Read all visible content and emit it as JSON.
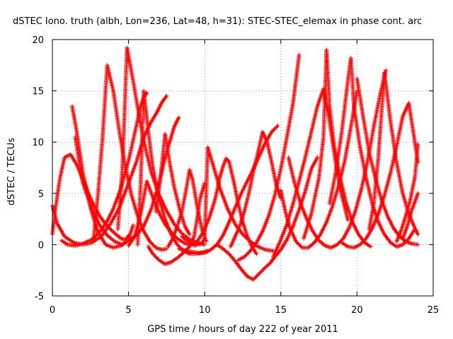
{
  "chart_data": {
    "type": "scatter",
    "title": "dSTEC Iono. truth (albh, Lon=236, Lat=48, h=31): STEC-STEC_elemax in phase cont. arc",
    "xlabel": "GPS time / hours of day 222 of year 2011",
    "ylabel": "dSTEC  / TECUs",
    "xlim": [
      0,
      25
    ],
    "ylim": [
      -5,
      20
    ],
    "xticks": [
      0,
      5,
      10,
      15,
      20,
      25
    ],
    "yticks": [
      -5,
      0,
      5,
      10,
      15,
      20
    ],
    "xtick_labels": [
      "0",
      "5",
      "10",
      "15",
      "20",
      "25"
    ],
    "ytick_labels": [
      "-5",
      "0",
      "5",
      "10",
      "15",
      "20"
    ],
    "grid": true,
    "marker": "plus",
    "color": "#ff0000",
    "series": [
      {
        "x": [
          0.0,
          0.3,
          0.8,
          1.4,
          2.0,
          2.6,
          3.2,
          3.8,
          4.4,
          4.9,
          5.5,
          6.0,
          6.5,
          6.9,
          7.2,
          7.5
        ],
        "y": [
          3.8,
          2.1,
          0.8,
          0.2,
          0.0,
          0.2,
          0.8,
          2.0,
          3.6,
          5.6,
          8.0,
          10.5,
          12.0,
          13.0,
          13.9,
          14.5
        ]
      },
      {
        "x": [
          1.5,
          2.0,
          2.6,
          3.1,
          3.6,
          4.1,
          4.6,
          5.0,
          5.3
        ],
        "y": [
          10.5,
          6.0,
          3.5,
          1.9,
          0.9,
          0.3,
          0.0,
          0.5,
          1.9
        ]
      },
      {
        "x": [
          0.0,
          0.2,
          0.5,
          0.8,
          1.2,
          1.6,
          2.1,
          2.6,
          3.1,
          3.6,
          4.1,
          4.5,
          4.7,
          4.9,
          5.0
        ],
        "y": [
          1.0,
          3.5,
          6.5,
          8.5,
          8.8,
          7.8,
          6.0,
          4.2,
          2.8,
          1.8,
          1.1,
          0.6,
          0.5,
          0.6,
          0.9
        ]
      },
      {
        "x": [
          0.6,
          1.0,
          1.5,
          2.0,
          2.6,
          3.2,
          3.6,
          4.0,
          4.5,
          5.0,
          5.5,
          5.8,
          6.0,
          6.2
        ],
        "y": [
          0.4,
          0.0,
          -0.1,
          0.1,
          0.5,
          1.4,
          2.3,
          3.5,
          5.5,
          8.2,
          11.5,
          13.5,
          14.4,
          14.8
        ]
      },
      {
        "x": [
          1.3,
          1.6,
          2.0,
          2.5,
          3.0,
          3.5,
          4.0,
          4.5,
          5.0,
          5.5,
          6.0,
          6.5,
          7.0,
          7.5,
          8.0,
          8.3
        ],
        "y": [
          13.5,
          11.0,
          7.0,
          3.6,
          1.2,
          0.0,
          -0.3,
          -0.1,
          0.4,
          0.9,
          1.8,
          3.5,
          6.0,
          9.0,
          11.5,
          12.4
        ]
      },
      {
        "x": [
          2.7,
          3.0,
          3.3,
          3.6,
          4.0,
          4.4,
          4.8,
          5.2,
          5.6,
          6.0,
          6.4,
          6.8,
          7.2,
          7.5
        ],
        "y": [
          0.5,
          5.0,
          10.5,
          17.5,
          15.0,
          11.0,
          7.5,
          4.8,
          2.8,
          1.3,
          0.3,
          -0.3,
          -0.5,
          -0.4
        ]
      },
      {
        "x": [
          4.3,
          4.6,
          4.9,
          5.3,
          5.7,
          6.1,
          6.5,
          7.0,
          7.5,
          8.0,
          8.5,
          9.0,
          9.5,
          10.0
        ],
        "y": [
          1.5,
          7.5,
          19.2,
          16.0,
          12.5,
          9.5,
          7.0,
          4.9,
          3.3,
          2.0,
          1.1,
          0.5,
          0.2,
          0.0
        ]
      },
      {
        "x": [
          5.0,
          5.4,
          5.8,
          6.2,
          6.6,
          7.0,
          7.4,
          7.8,
          8.2,
          8.6,
          9.0,
          9.4
        ],
        "y": [
          -0.1,
          0.8,
          3.0,
          6.2,
          4.6,
          3.1,
          2.0,
          1.2,
          0.6,
          0.2,
          0.0,
          -0.1
        ]
      },
      {
        "x": [
          5.6,
          5.8,
          6.0,
          6.3,
          6.6,
          7.0,
          7.4,
          7.8,
          8.2,
          8.6,
          9.0,
          9.4,
          9.8,
          10.2
        ],
        "y": [
          0.0,
          6.0,
          15.0,
          11.0,
          7.5,
          4.5,
          2.5,
          1.0,
          0.0,
          -0.6,
          -0.9,
          -0.9,
          -0.8,
          -0.6
        ]
      },
      {
        "x": [
          6.3,
          6.6,
          7.0,
          7.4,
          7.8,
          8.2,
          8.6,
          9.0,
          9.3,
          9.5,
          9.7,
          9.9,
          10.0
        ],
        "y": [
          -0.2,
          -0.9,
          -1.5,
          -1.9,
          -1.7,
          -1.3,
          -0.8,
          -0.2,
          0.8,
          2.5,
          4.5,
          5.5,
          6.0
        ]
      },
      {
        "x": [
          6.8,
          7.1,
          7.4,
          7.7,
          8.0,
          8.4,
          8.7,
          9.0
        ],
        "y": [
          3.2,
          6.5,
          10.8,
          8.0,
          5.6,
          3.2,
          1.8,
          1.0
        ]
      },
      {
        "x": [
          7.6,
          7.9,
          8.2,
          8.5,
          8.8,
          9.0,
          9.2,
          9.5,
          9.8,
          10.1
        ],
        "y": [
          -0.2,
          0.6,
          1.8,
          3.2,
          5.5,
          7.3,
          6.4,
          3.8,
          1.6,
          0.3
        ]
      },
      {
        "x": [
          8.5,
          9.0,
          9.5,
          9.8,
          10.0,
          10.2,
          10.5,
          11.0,
          11.5,
          12.0,
          12.5,
          13.0,
          13.5,
          14.0,
          14.5
        ],
        "y": [
          0.8,
          0.2,
          0.0,
          0.1,
          0.6,
          9.5,
          8.0,
          5.5,
          3.5,
          2.0,
          1.0,
          0.3,
          -0.2,
          -0.5,
          -0.6
        ]
      },
      {
        "x": [
          8.3,
          8.8,
          9.2,
          9.6,
          10.0,
          10.4,
          10.8,
          11.2,
          11.6,
          12.0,
          12.4,
          12.8,
          13.2,
          13.6,
          14.0,
          14.4,
          14.8
        ],
        "y": [
          -0.4,
          -0.6,
          -0.7,
          -0.8,
          -0.8,
          -0.5,
          0.0,
          0.9,
          2.2,
          3.6,
          5.0,
          6.2,
          7.4,
          8.7,
          10.0,
          11.0,
          11.6
        ]
      },
      {
        "x": [
          9.5,
          9.9,
          10.3,
          10.7,
          11.0,
          11.2,
          11.4,
          11.6,
          11.9,
          12.2,
          12.5,
          12.8,
          13.1,
          13.4
        ],
        "y": [
          0.3,
          1.2,
          2.6,
          4.5,
          6.6,
          7.6,
          8.4,
          8.1,
          6.2,
          4.0,
          2.2,
          0.8,
          -0.2,
          -0.9
        ]
      },
      {
        "x": [
          10.8,
          11.2,
          11.6,
          12.0,
          12.4,
          12.8,
          13.2,
          13.6,
          14.0,
          14.3,
          14.6,
          15.0,
          15.4,
          15.8,
          16.2,
          16.6,
          17.0,
          17.4
        ],
        "y": [
          0.0,
          -0.4,
          -0.9,
          -1.6,
          -2.4,
          -3.1,
          -3.4,
          -2.8,
          -2.2,
          -1.8,
          -1.2,
          -0.5,
          0.5,
          1.8,
          3.4,
          5.2,
          7.4,
          8.5
        ]
      },
      {
        "x": [
          11.7,
          12.0,
          12.3,
          12.6,
          12.9,
          13.2,
          13.5,
          13.8,
          14.1,
          14.4,
          14.7,
          15.0
        ],
        "y": [
          -0.2,
          0.8,
          1.8,
          3.2,
          5.0,
          7.2,
          9.0,
          11.0,
          10.0,
          8.0,
          5.8,
          4.5
        ]
      },
      {
        "x": [
          12.2,
          12.6,
          13.0,
          13.4,
          13.8,
          14.2,
          14.6,
          15.0,
          15.4,
          15.8,
          16.2
        ],
        "y": [
          -1.5,
          -1.2,
          -0.6,
          0.2,
          1.3,
          2.8,
          4.8,
          7.4,
          10.5,
          13.8,
          18.5
        ]
      },
      {
        "x": [
          14.5,
          15.0,
          15.4,
          15.8,
          16.2,
          16.6,
          17.0,
          17.4,
          17.8,
          18.2,
          18.6,
          19.0,
          19.4
        ],
        "y": [
          -1.2,
          0.5,
          2.0,
          4.0,
          6.2,
          8.5,
          11.0,
          13.5,
          15.2,
          12.0,
          8.0,
          4.8,
          2.4
        ]
      },
      {
        "x": [
          15.0,
          15.3,
          15.6,
          16.0,
          16.4,
          16.8,
          17.2,
          17.6,
          18.0,
          18.4,
          18.8,
          19.2,
          19.6,
          20.0
        ],
        "y": [
          5.3,
          3.2,
          1.6,
          0.3,
          -0.3,
          -0.3,
          0.2,
          1.0,
          2.2,
          3.8,
          5.8,
          8.2,
          11.5,
          15.0
        ]
      },
      {
        "x": [
          15.5,
          15.9,
          16.3,
          16.7,
          17.1,
          17.5,
          17.9,
          18.3,
          18.7,
          19.1,
          19.5,
          19.9,
          20.3,
          20.7,
          21.1,
          21.5,
          21.9
        ],
        "y": [
          8.5,
          6.0,
          4.0,
          2.5,
          1.3,
          0.4,
          -0.1,
          -0.3,
          0.0,
          0.6,
          1.7,
          3.3,
          5.5,
          8.2,
          11.5,
          14.5,
          17.0
        ]
      },
      {
        "x": [
          16.5,
          17.0,
          17.5,
          17.8,
          18.0,
          18.2,
          18.5,
          18.9,
          19.3,
          19.7,
          20.1,
          20.5,
          20.9
        ],
        "y": [
          0.6,
          3.0,
          6.5,
          10.5,
          19.0,
          13.5,
          9.6,
          6.5,
          4.0,
          2.2,
          1.0,
          0.2,
          -0.2
        ]
      },
      {
        "x": [
          18.2,
          18.6,
          19.0,
          19.4,
          19.6,
          19.8,
          20.2,
          20.6,
          21.0,
          21.4,
          21.8,
          22.2,
          22.6,
          23.0,
          23.4,
          23.8
        ],
        "y": [
          4.0,
          7.0,
          11.0,
          16.0,
          18.2,
          13.5,
          9.5,
          6.5,
          4.0,
          2.2,
          1.0,
          0.2,
          -0.2,
          0.0,
          0.6,
          1.5
        ]
      },
      {
        "x": [
          19.0,
          19.4,
          19.8,
          20.2,
          20.6,
          21.0,
          21.4,
          21.8,
          22.2,
          22.6,
          23.0,
          23.4,
          23.8,
          24.0
        ],
        "y": [
          0.2,
          -0.2,
          -0.3,
          0.0,
          0.6,
          1.6,
          3.0,
          4.8,
          7.0,
          9.6,
          12.5,
          13.8,
          10.0,
          8.0
        ]
      },
      {
        "x": [
          20.0,
          20.4,
          20.8,
          21.2,
          21.6,
          22.0,
          22.4,
          22.8,
          23.2,
          23.6,
          24.0
        ],
        "y": [
          16.2,
          12.5,
          9.0,
          6.5,
          4.4,
          2.8,
          1.6,
          0.8,
          0.3,
          0.1,
          0.0
        ]
      },
      {
        "x": [
          20.8,
          21.1,
          21.4,
          21.8,
          22.2,
          22.6,
          23.0,
          23.4,
          23.8,
          24.0
        ],
        "y": [
          1.5,
          4.0,
          8.5,
          16.8,
          12.0,
          8.0,
          5.0,
          3.0,
          1.6,
          1.0
        ]
      },
      {
        "x": [
          22.6,
          22.9,
          23.2,
          23.5,
          23.8,
          24.0
        ],
        "y": [
          0.3,
          1.4,
          2.8,
          4.4,
          6.6,
          9.8
        ]
      },
      {
        "x": [
          23.0,
          23.3,
          23.6,
          23.9,
          24.0
        ],
        "y": [
          0.6,
          1.8,
          3.4,
          4.6,
          5.0
        ]
      }
    ]
  }
}
